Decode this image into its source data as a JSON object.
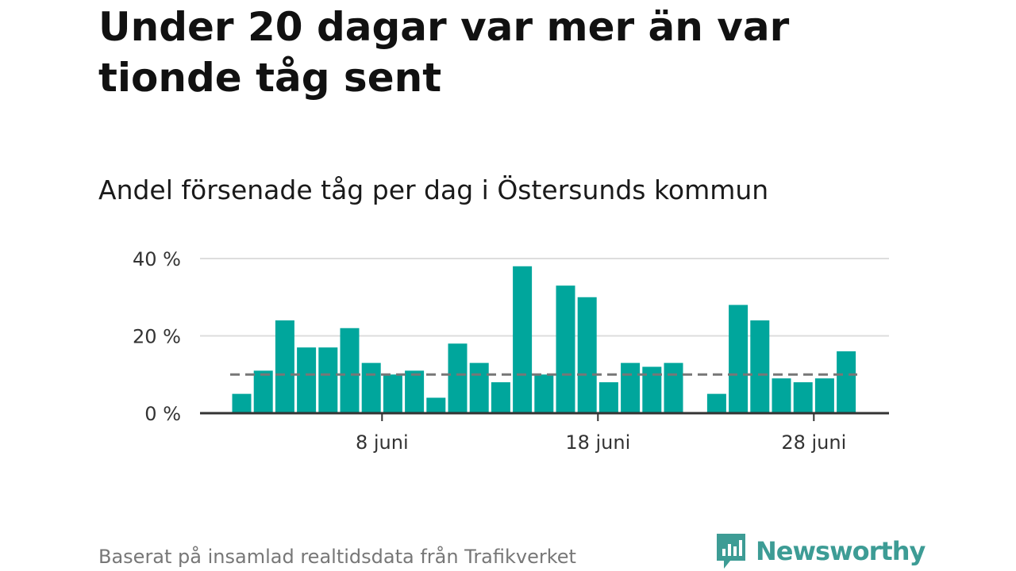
{
  "title": "Under 20 dagar var mer än var tionde tåg sent",
  "subtitle": "Andel försenade tåg per dag i Östersunds kommun",
  "source": "Baserat på insamlad realtidsdata från Trafikverket",
  "brand": {
    "name": "Newsworthy",
    "icon": "newsworthy-logo-icon",
    "color": "#3d9c95"
  },
  "colors": {
    "bar": "#00a69c",
    "reference": "#777777",
    "grid": "#dddddd",
    "axis": "#333333"
  },
  "chart_data": {
    "type": "bar",
    "x": [
      1,
      2,
      3,
      4,
      5,
      6,
      7,
      8,
      9,
      10,
      11,
      12,
      13,
      14,
      15,
      16,
      17,
      18,
      19,
      20,
      21,
      22,
      23,
      24,
      25,
      26,
      27,
      28,
      29,
      30
    ],
    "values": [
      5,
      11,
      24,
      17,
      17,
      22,
      13,
      10,
      11,
      4,
      18,
      13,
      8,
      38,
      10,
      33,
      30,
      8,
      13,
      12,
      13,
      null,
      5,
      28,
      24,
      9,
      8,
      9,
      16,
      null
    ],
    "xticks": [
      {
        "x": 8,
        "label": "8 juni"
      },
      {
        "x": 18,
        "label": "18 juni"
      },
      {
        "x": 28,
        "label": "28 juni"
      }
    ],
    "yticks": [
      {
        "y": 0,
        "label": "0 %"
      },
      {
        "y": 20,
        "label": "20 %"
      },
      {
        "y": 40,
        "label": "40 %"
      }
    ],
    "ylim": [
      0,
      40
    ],
    "reference_line": 10,
    "grid": true,
    "unit": "%",
    "xlabel": "",
    "ylabel": ""
  }
}
